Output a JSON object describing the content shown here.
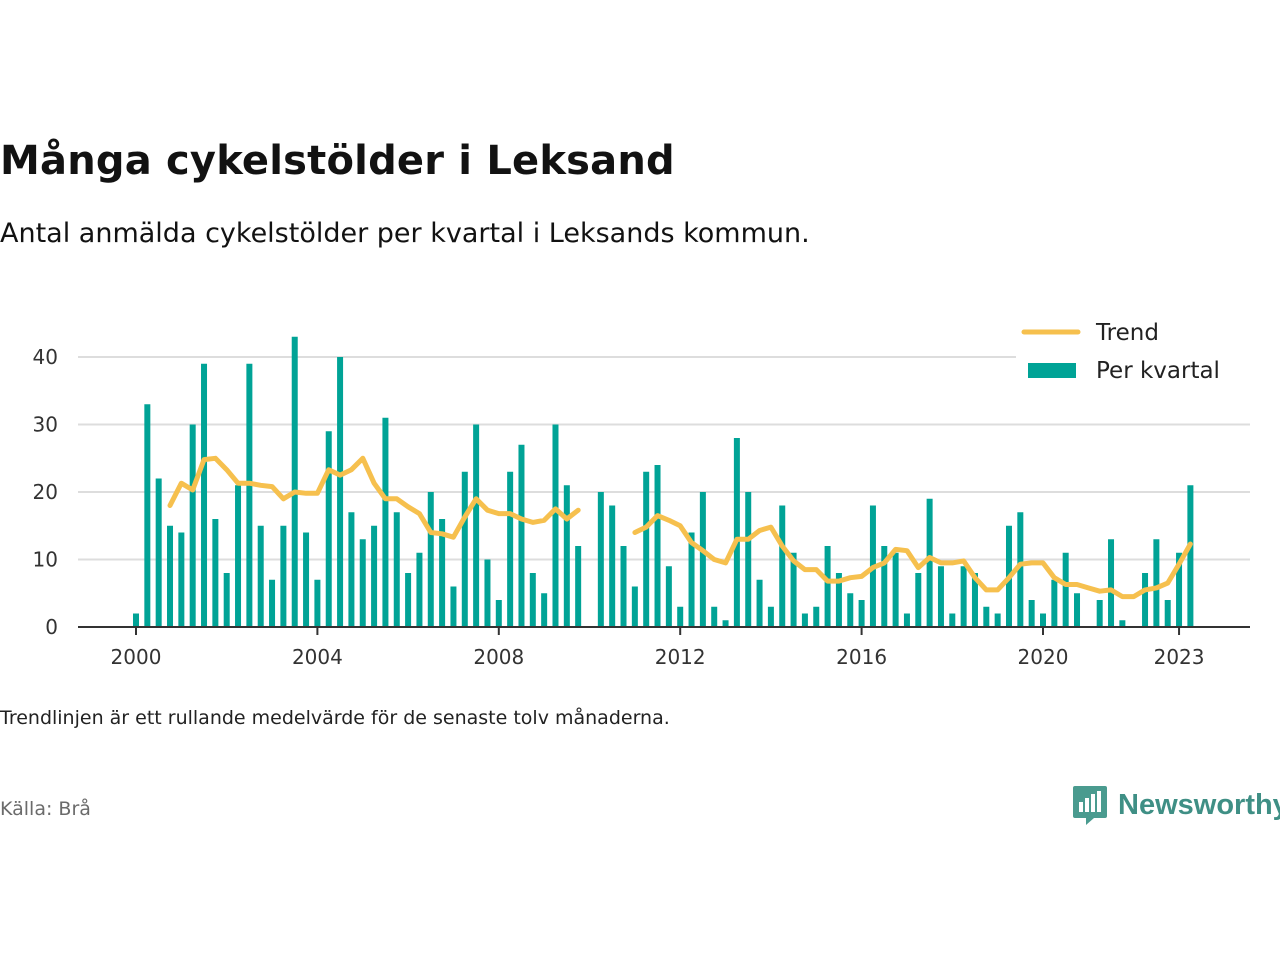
{
  "title": "Många cykelstölder i Leksand",
  "subtitle": "Antal anmälda cykelstölder per kvartal i Leksands kommun.",
  "note": "Trendlinjen är ett rullande medelvärde för de senaste tolv månaderna.",
  "source": "Källa: Brå",
  "brand": {
    "name": "Newsworthy",
    "icon": "newsworthy-logo-icon"
  },
  "colors": {
    "bars": "#00a396",
    "trend": "#f6c04e",
    "grid": "#dddddd",
    "axis": "#333333"
  },
  "chart_data": {
    "type": "bar",
    "x_start": "2000 Q1",
    "x_tick_labels": [
      "2000",
      "2004",
      "2008",
      "2012",
      "2016",
      "2020",
      "2023"
    ],
    "y_tick_labels": [
      "0",
      "10",
      "20",
      "30",
      "40"
    ],
    "ylim": [
      0,
      45
    ],
    "grid": true,
    "legend_position": "top-right",
    "series": [
      {
        "name": "Per kvartal",
        "type": "bar",
        "values": [
          2,
          33,
          22,
          15,
          14,
          30,
          39,
          16,
          8,
          21,
          39,
          15,
          7,
          15,
          43,
          14,
          7,
          29,
          40,
          17,
          13,
          15,
          31,
          17,
          8,
          11,
          20,
          16,
          6,
          23,
          30,
          10,
          4,
          23,
          27,
          8,
          5,
          30,
          21,
          12,
          null,
          20,
          18,
          12,
          6,
          23,
          24,
          9,
          3,
          14,
          20,
          3,
          1,
          28,
          20,
          7,
          3,
          18,
          11,
          2,
          3,
          12,
          8,
          5,
          4,
          18,
          12,
          11,
          2,
          8,
          19,
          9,
          2,
          9,
          8,
          3,
          2,
          15,
          17,
          4,
          2,
          7,
          11,
          5,
          null,
          4,
          13,
          1,
          null,
          8,
          13,
          4,
          11,
          21
        ]
      },
      {
        "name": "Trend",
        "type": "line",
        "values": [
          null,
          null,
          null,
          18,
          21.3,
          20.3,
          24.8,
          25,
          23.3,
          21.3,
          21.3,
          21,
          20.8,
          19,
          20,
          19.8,
          19.8,
          23.3,
          22.5,
          23.3,
          25,
          21.3,
          19,
          19,
          17.8,
          16.8,
          14,
          13.8,
          13.3,
          16.3,
          19,
          17.3,
          16.8,
          16.8,
          16,
          15.5,
          15.8,
          17.5,
          16,
          17.3,
          null,
          null,
          null,
          null,
          14,
          14.8,
          16.5,
          15.8,
          15,
          12.5,
          11.3,
          10,
          9.5,
          13,
          13,
          14.3,
          14.8,
          12,
          9.8,
          8.5,
          8.5,
          6.8,
          6.8,
          7.3,
          7.5,
          8.8,
          9.5,
          11.5,
          11.3,
          8.8,
          10.3,
          9.5,
          9.5,
          9.8,
          7.3,
          5.5,
          5.5,
          7.3,
          9.3,
          9.5,
          9.5,
          7.3,
          6.3,
          6.3,
          5.8,
          5.3,
          5.5,
          4.5,
          4.5,
          5.5,
          5.8,
          6.5,
          9.3,
          12.3
        ]
      }
    ]
  }
}
